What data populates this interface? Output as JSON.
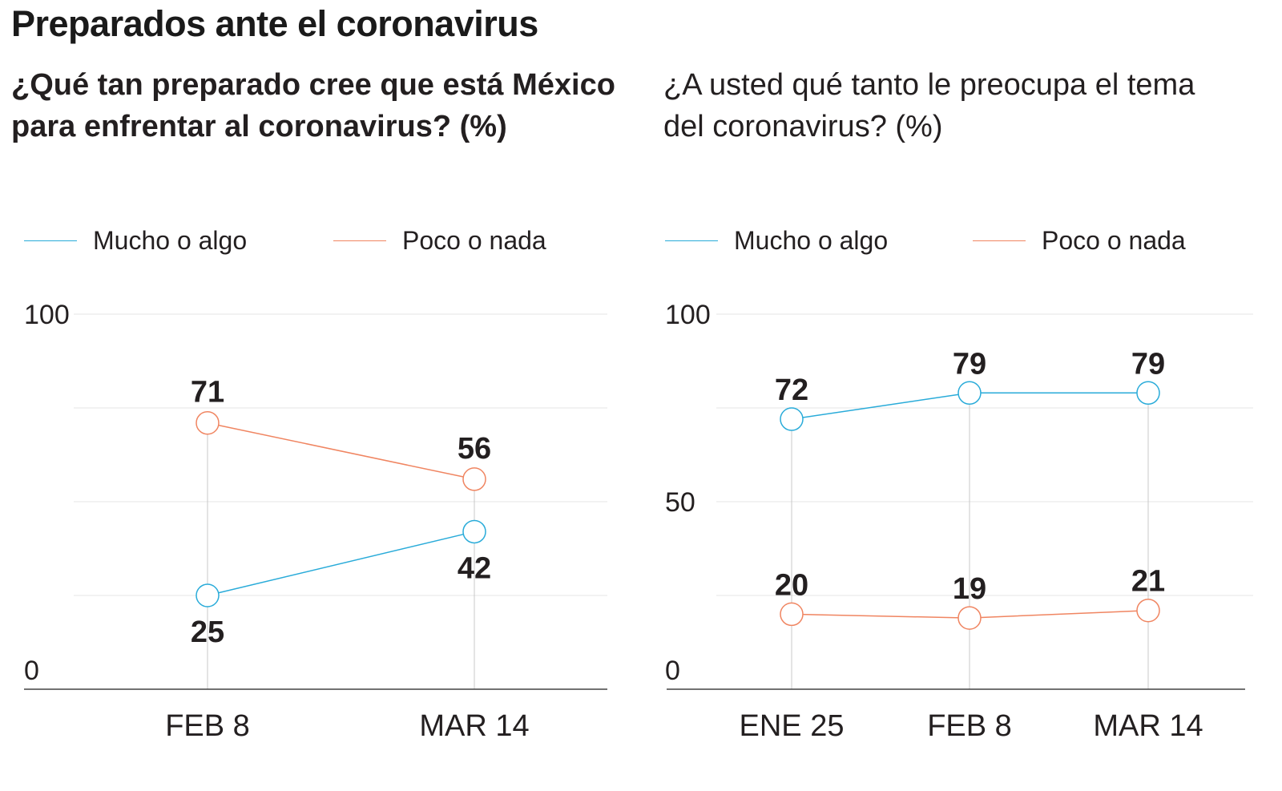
{
  "title": "Preparados ante el coronavirus",
  "colors": {
    "mucho": "#29abd9",
    "poco": "#f08561",
    "grid": "#e6e6e6",
    "axis": "#444444",
    "vline": "#c8c8c8"
  },
  "chart_data": [
    {
      "type": "line",
      "title": "¿Qué tan preparado cree que está México para enfrentar al coronavirus? (%)",
      "categories": [
        "FEB 8",
        "MAR 14"
      ],
      "series": [
        {
          "name": "Mucho o algo",
          "values": [
            25,
            42
          ]
        },
        {
          "name": "Poco o nada",
          "values": [
            71,
            56
          ]
        }
      ],
      "ylim": [
        0,
        100
      ],
      "yticks": [
        "100",
        "0"
      ],
      "legend": "top-left",
      "grid": true
    },
    {
      "type": "line",
      "title": "¿A usted qué tanto le preocupa el tema del coronavirus? (%)",
      "categories": [
        "ENE 25",
        "FEB 8",
        "MAR 14"
      ],
      "series": [
        {
          "name": "Mucho o algo",
          "values": [
            72,
            79,
            79
          ]
        },
        {
          "name": "Poco o nada",
          "values": [
            20,
            19,
            21
          ]
        }
      ],
      "ylim": [
        0,
        100
      ],
      "yticks": [
        "100",
        "50",
        "0"
      ],
      "legend": "top-left",
      "grid": true
    }
  ]
}
